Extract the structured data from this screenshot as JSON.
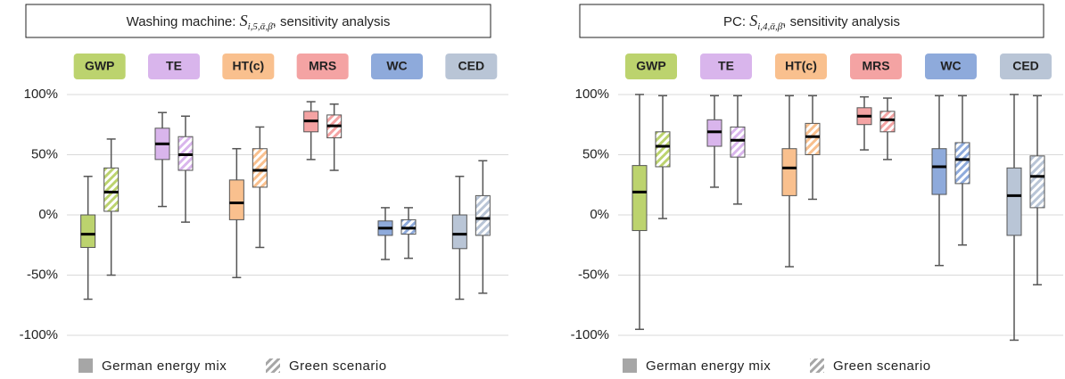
{
  "chart_data": [
    {
      "type": "box",
      "title": {
        "text": "Washing machine: ",
        "symbol": "S",
        "subscript": "i,5,ᾱ,β̄",
        "suffix": ", sensitivity analysis"
      },
      "categories": [
        "GWP",
        "TE",
        "HT(c)",
        "MRS",
        "WC",
        "CED"
      ],
      "category_colors": [
        "#bcd36e",
        "#d9b5ec",
        "#f9c08e",
        "#f4a3a3",
        "#8eaadb",
        "#b9c5d6"
      ],
      "legend_color": "#a6a6a6",
      "grid": true,
      "ylim": [
        -105,
        105
      ],
      "yticks": [
        {
          "value": -100,
          "label": "-100%"
        },
        {
          "value": -50,
          "label": "-50%"
        },
        {
          "value": 0,
          "label": "0%"
        },
        {
          "value": 50,
          "label": "50%"
        },
        {
          "value": 100,
          "label": "100%"
        }
      ],
      "series": [
        {
          "name": "German energy mix",
          "pattern": "solid",
          "values": [
            {
              "min": -70,
              "q1": -27,
              "median": -16,
              "q3": 0,
              "max": 32
            },
            {
              "min": 7,
              "q1": 46,
              "median": 59,
              "q3": 72,
              "max": 85
            },
            {
              "min": -52,
              "q1": -4,
              "median": 10,
              "q3": 29,
              "max": 55
            },
            {
              "min": 46,
              "q1": 69,
              "median": 78,
              "q3": 86,
              "max": 94
            },
            {
              "min": -37,
              "q1": -17,
              "median": -11,
              "q3": -5,
              "max": 6
            },
            {
              "min": -70,
              "q1": -28,
              "median": -16,
              "q3": 0,
              "max": 32
            }
          ]
        },
        {
          "name": "Green scenario",
          "pattern": "hatched",
          "values": [
            {
              "min": -50,
              "q1": 3,
              "median": 19,
              "q3": 39,
              "max": 63
            },
            {
              "min": -6,
              "q1": 37,
              "median": 50,
              "q3": 65,
              "max": 82
            },
            {
              "min": -27,
              "q1": 23,
              "median": 37,
              "q3": 55,
              "max": 73
            },
            {
              "min": 37,
              "q1": 64,
              "median": 74,
              "q3": 83,
              "max": 92
            },
            {
              "min": -36,
              "q1": -16,
              "median": -11,
              "q3": -4,
              "max": 6
            },
            {
              "min": -65,
              "q1": -17,
              "median": -3,
              "q3": 16,
              "max": 45
            }
          ]
        }
      ]
    },
    {
      "type": "box",
      "title": {
        "text": "PC: ",
        "symbol": "S",
        "subscript": "i,4,ᾱ,β̄",
        "suffix": ", sensitivity analysis"
      },
      "categories": [
        "GWP",
        "TE",
        "HT(c)",
        "MRS",
        "WC",
        "CED"
      ],
      "category_colors": [
        "#bcd36e",
        "#d9b5ec",
        "#f9c08e",
        "#f4a3a3",
        "#8eaadb",
        "#b9c5d6"
      ],
      "legend_color": "#a6a6a6",
      "grid": true,
      "ylim": [
        -105,
        105
      ],
      "yticks": [
        {
          "value": -100,
          "label": "-100%"
        },
        {
          "value": -50,
          "label": "-50%"
        },
        {
          "value": 0,
          "label": "0%"
        },
        {
          "value": 50,
          "label": "50%"
        },
        {
          "value": 100,
          "label": "100%"
        }
      ],
      "series": [
        {
          "name": "German energy mix",
          "pattern": "solid",
          "values": [
            {
              "min": -95,
              "q1": -13,
              "median": 19,
              "q3": 41,
              "max": 100
            },
            {
              "min": 23,
              "q1": 57,
              "median": 69,
              "q3": 79,
              "max": 99
            },
            {
              "min": -43,
              "q1": 16,
              "median": 39,
              "q3": 55,
              "max": 99
            },
            {
              "min": 54,
              "q1": 75,
              "median": 82,
              "q3": 89,
              "max": 98
            },
            {
              "min": -42,
              "q1": 17,
              "median": 40,
              "q3": 55,
              "max": 99
            },
            {
              "min": -104,
              "q1": -17,
              "median": 16,
              "q3": 39,
              "max": 100
            }
          ]
        },
        {
          "name": "Green scenario",
          "pattern": "hatched",
          "values": [
            {
              "min": -3,
              "q1": 40,
              "median": 57,
              "q3": 69,
              "max": 99
            },
            {
              "min": 9,
              "q1": 48,
              "median": 62,
              "q3": 73,
              "max": 99
            },
            {
              "min": 13,
              "q1": 50,
              "median": 65,
              "q3": 76,
              "max": 99
            },
            {
              "min": 46,
              "q1": 69,
              "median": 79,
              "q3": 86,
              "max": 97
            },
            {
              "min": -25,
              "q1": 26,
              "median": 46,
              "q3": 60,
              "max": 99
            },
            {
              "min": -58,
              "q1": 6,
              "median": 32,
              "q3": 49,
              "max": 99
            }
          ]
        }
      ]
    }
  ]
}
